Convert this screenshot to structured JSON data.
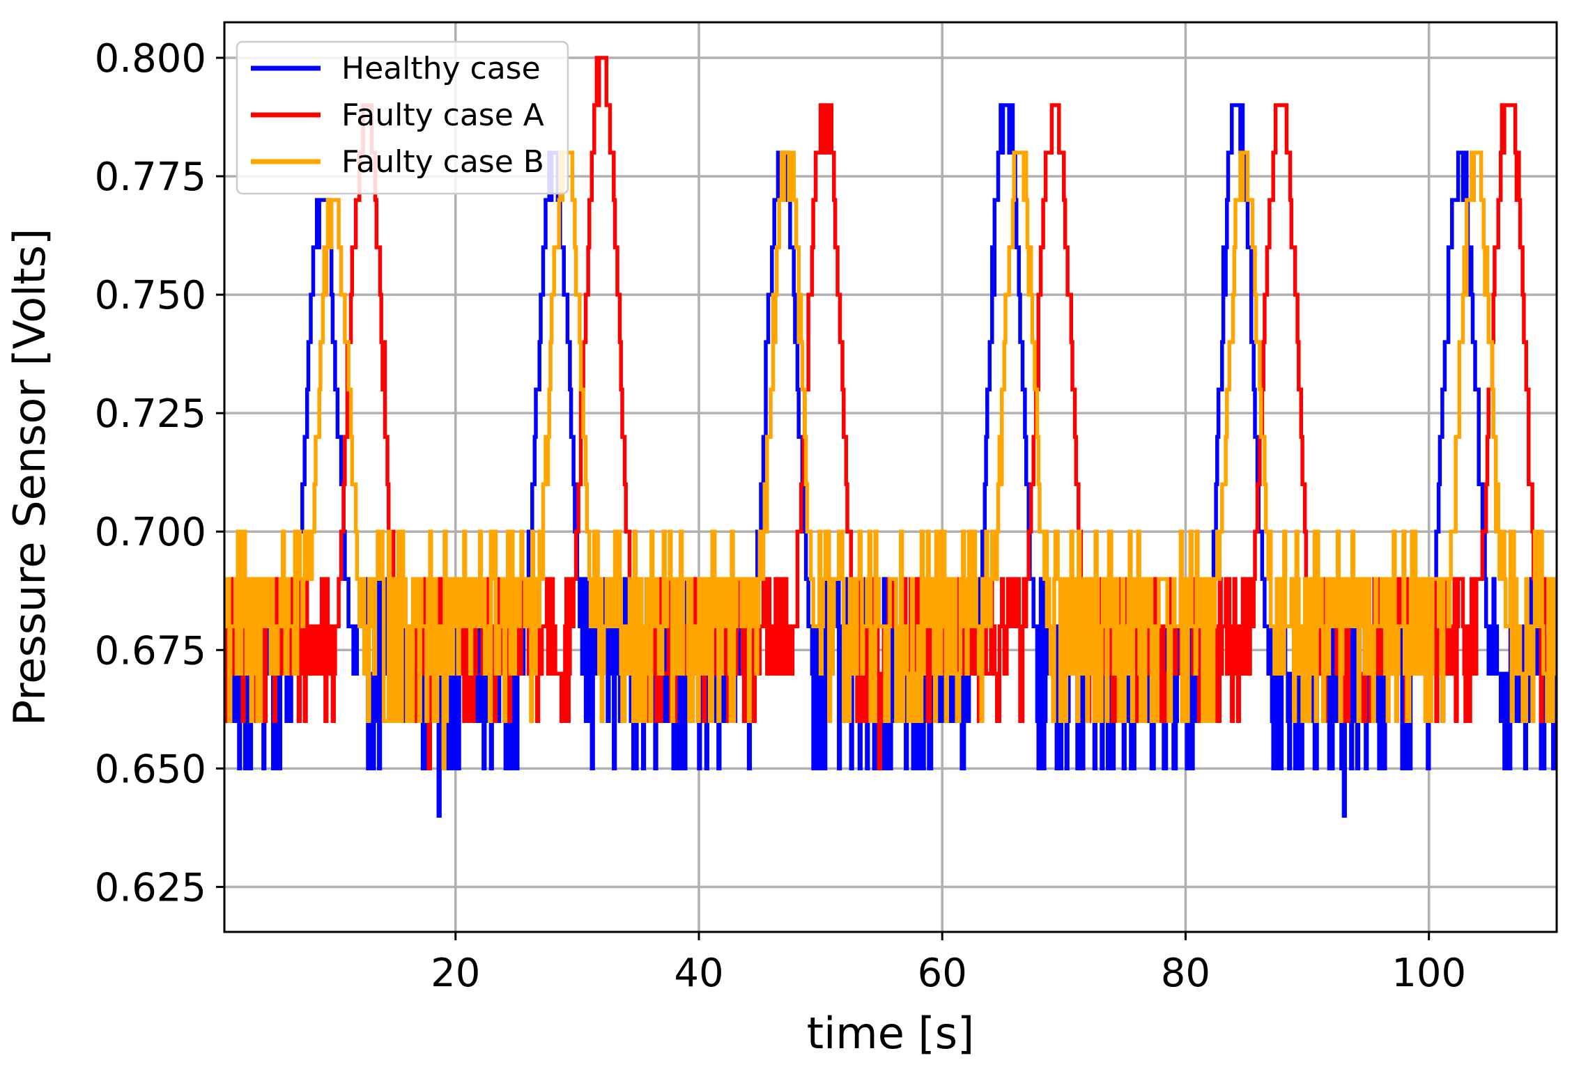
{
  "chart_data": {
    "type": "line",
    "title": "",
    "xlabel": "time [s]",
    "ylabel": "Pressure Sensor [Volts]",
    "xlim": [
      1,
      110.5
    ],
    "ylim": [
      0.6155,
      0.8075
    ],
    "grid": true,
    "legend_position": "top-left",
    "x_ticks": [
      20,
      40,
      60,
      80,
      100
    ],
    "x_tick_labels": [
      "20",
      "40",
      "60",
      "80",
      "100"
    ],
    "y_ticks": [
      0.625,
      0.65,
      0.675,
      0.7,
      0.725,
      0.75,
      0.775,
      0.8
    ],
    "y_tick_labels": [
      "0.625",
      "0.650",
      "0.675",
      "0.700",
      "0.725",
      "0.750",
      "0.775",
      "0.800"
    ],
    "sample_step": 0.1,
    "series": [
      {
        "name": "Healthy case",
        "color": "#0000ff",
        "baseline": 0.67,
        "noise": [
          0.65,
          0.66,
          0.67,
          0.67,
          0.68,
          0.68,
          0.69
        ],
        "peaks": [
          {
            "time": 9.0,
            "value": 0.77
          },
          {
            "time": 28.0,
            "value": 0.78
          },
          {
            "time": 46.8,
            "value": 0.78
          },
          {
            "time": 65.2,
            "value": 0.79
          },
          {
            "time": 84.2,
            "value": 0.79
          },
          {
            "time": 102.5,
            "value": 0.78
          }
        ],
        "peak_half_width": 2.6,
        "dips": [
          {
            "time": 18.6,
            "value": 0.64
          },
          {
            "time": 93.0,
            "value": 0.64
          }
        ]
      },
      {
        "name": "Faulty case A",
        "color": "#ff0000",
        "baseline": 0.68,
        "noise": [
          0.66,
          0.67,
          0.67,
          0.68,
          0.68,
          0.69,
          0.69
        ],
        "peaks": [
          {
            "time": 12.6,
            "value": 0.79
          },
          {
            "time": 32.0,
            "value": 0.8
          },
          {
            "time": 50.3,
            "value": 0.79
          },
          {
            "time": 69.2,
            "value": 0.79
          },
          {
            "time": 87.8,
            "value": 0.79
          },
          {
            "time": 106.5,
            "value": 0.79
          }
        ],
        "peak_half_width": 2.6,
        "dips": [
          {
            "time": 17.8,
            "value": 0.65
          },
          {
            "time": 54.8,
            "value": 0.65
          }
        ]
      },
      {
        "name": "Faulty case B",
        "color": "#ffa500",
        "baseline": 0.68,
        "noise": [
          0.66,
          0.67,
          0.68,
          0.68,
          0.69,
          0.69,
          0.7
        ],
        "peaks": [
          {
            "time": 10.0,
            "value": 0.77
          },
          {
            "time": 29.0,
            "value": 0.78
          },
          {
            "time": 47.2,
            "value": 0.78
          },
          {
            "time": 66.3,
            "value": 0.78
          },
          {
            "time": 84.8,
            "value": 0.78
          },
          {
            "time": 103.8,
            "value": 0.78
          }
        ],
        "peak_half_width": 2.4,
        "dips": [
          {
            "time": 19.0,
            "value": 0.65
          }
        ]
      }
    ]
  }
}
